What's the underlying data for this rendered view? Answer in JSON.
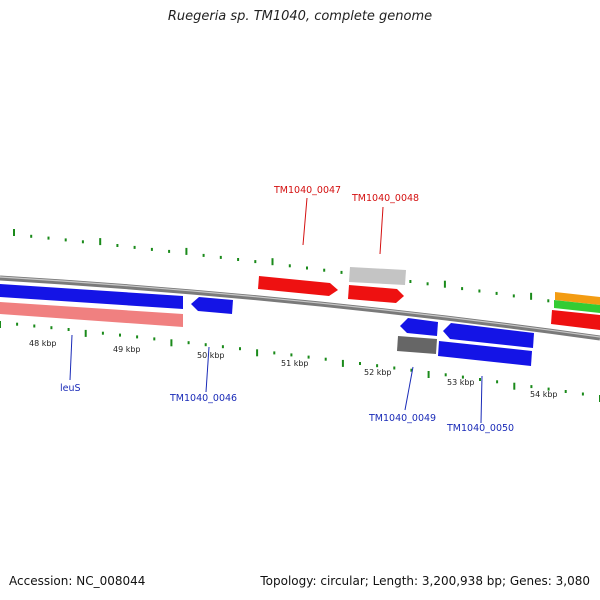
{
  "title": "Ruegeria sp. TM1040, complete genome",
  "footer": {
    "accession": "Accession: NC_008044",
    "summary": "Topology: circular; Length: 3,200,938 bp; Genes: 3,080"
  },
  "colors": {
    "blue": "#1414e6",
    "red": "#ee1111",
    "pink": "#f08080",
    "light_gray": "#c4c4c4",
    "dark_gray": "#666666",
    "orange": "#f39c12",
    "green": "#33cc33",
    "tick_green": "#1a8a1a",
    "backbone": "#7a7a7a"
  },
  "kbp_labels": [
    "48 kbp",
    "49 kbp",
    "50 kbp",
    "51 kbp",
    "52 kbp",
    "53 kbp",
    "54 kbp"
  ],
  "gene_labels": {
    "leuS": "leuS",
    "g46": "TM1040_0046",
    "g47": "TM1040_0047",
    "g48": "TM1040_0048",
    "g49": "TM1040_0049",
    "g50": "TM1040_0050"
  }
}
